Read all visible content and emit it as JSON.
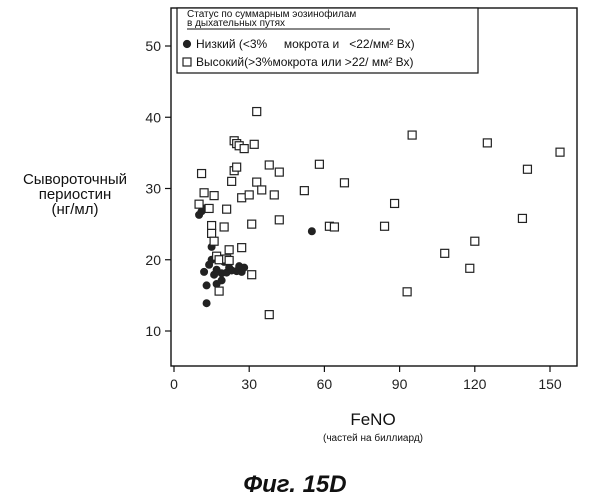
{
  "chart_data": {
    "type": "scatter",
    "legend": {
      "title_line1": "Статус по суммарным эозинофилам",
      "title_line2": "в дыхательных путях",
      "items": [
        {
          "marker": "filled-circle",
          "text": "Низкий (<3%     мокрота и   <22/мм² Вх)"
        },
        {
          "marker": "open-square",
          "text": "Высокий(>3%мокрота или >22/ мм² Вх)"
        }
      ]
    },
    "xlabel": "FeNO",
    "xlabel_sub": "(частей на биллиард)",
    "ylabel_lines": [
      "Сывороточный",
      "периостин",
      "(нг/мл)"
    ],
    "caption": "Фиг. 15D",
    "xlim": [
      0,
      160
    ],
    "ylim": [
      5,
      50
    ],
    "x_ticks": [
      0,
      30,
      60,
      90,
      120,
      150
    ],
    "y_ticks": [
      10,
      20,
      30,
      40,
      50
    ],
    "series": [
      {
        "marker": "filled-circle",
        "points": [
          [
            10,
            26.3
          ],
          [
            11,
            26.8
          ],
          [
            12,
            27.2
          ],
          [
            12,
            18.3
          ],
          [
            13,
            16.4
          ],
          [
            13,
            13.9
          ],
          [
            14,
            19.3
          ],
          [
            15,
            21.8
          ],
          [
            15,
            20.0
          ],
          [
            16,
            17.9
          ],
          [
            17,
            18.6
          ],
          [
            17,
            16.6
          ],
          [
            18,
            20.3
          ],
          [
            19,
            18.1
          ],
          [
            19,
            17.1
          ],
          [
            20,
            19.7
          ],
          [
            21,
            18.2
          ],
          [
            22,
            18.9
          ],
          [
            23,
            18.5
          ],
          [
            25,
            18.4
          ],
          [
            26,
            19.1
          ],
          [
            27,
            18.3
          ],
          [
            28,
            18.9
          ],
          [
            55,
            24.0
          ]
        ]
      },
      {
        "marker": "open-square",
        "points": [
          [
            10,
            27.8
          ],
          [
            11,
            32.1
          ],
          [
            12,
            29.4
          ],
          [
            14,
            27.2
          ],
          [
            15,
            24.8
          ],
          [
            15,
            23.7
          ],
          [
            16,
            29.0
          ],
          [
            16,
            22.6
          ],
          [
            17,
            20.5
          ],
          [
            18,
            20.0
          ],
          [
            18,
            15.6
          ],
          [
            20,
            24.6
          ],
          [
            21,
            27.1
          ],
          [
            21,
            20.1
          ],
          [
            22,
            21.4
          ],
          [
            22,
            19.9
          ],
          [
            23,
            31.0
          ],
          [
            24,
            32.5
          ],
          [
            24,
            36.7
          ],
          [
            25,
            36.3
          ],
          [
            25,
            33.0
          ],
          [
            26,
            36.0
          ],
          [
            27,
            28.7
          ],
          [
            27,
            21.7
          ],
          [
            28,
            35.6
          ],
          [
            30,
            29.1
          ],
          [
            31,
            25.0
          ],
          [
            31,
            17.9
          ],
          [
            32,
            36.2
          ],
          [
            33,
            40.8
          ],
          [
            33,
            30.9
          ],
          [
            35,
            29.8
          ],
          [
            38,
            33.3
          ],
          [
            38,
            12.3
          ],
          [
            40,
            29.1
          ],
          [
            42,
            25.6
          ],
          [
            42,
            32.3
          ],
          [
            52,
            29.7
          ],
          [
            58,
            33.4
          ],
          [
            62,
            24.7
          ],
          [
            64,
            24.6
          ],
          [
            68,
            30.8
          ],
          [
            84,
            24.7
          ],
          [
            88,
            27.9
          ],
          [
            93,
            15.5
          ],
          [
            95,
            37.5
          ],
          [
            108,
            20.9
          ],
          [
            118,
            18.8
          ],
          [
            120,
            22.6
          ],
          [
            125,
            36.4
          ],
          [
            139,
            25.8
          ],
          [
            141,
            32.7
          ],
          [
            154,
            35.1
          ]
        ]
      }
    ]
  }
}
